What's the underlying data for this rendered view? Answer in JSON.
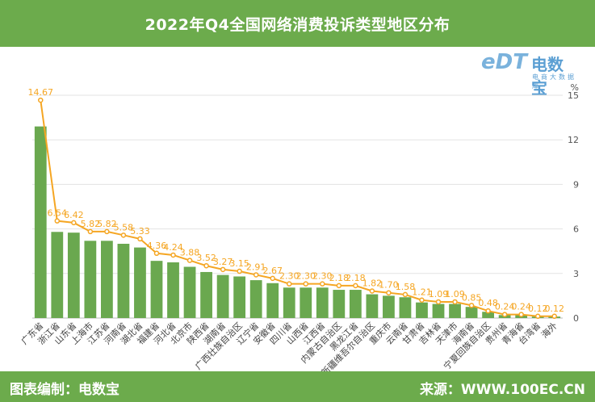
{
  "header": {
    "title": "2022年Q4全国网络消费投诉类型地区分布"
  },
  "logo": {
    "name": "电数宝",
    "sub": "电商大数据库",
    "mark": "eDT"
  },
  "footer": {
    "left": "图表编制：电数宝",
    "right": "来源：WWW.100EC.CN"
  },
  "colors": {
    "bar": "#6aa84f",
    "line": "#f5a623",
    "header": "#6cab4c",
    "label": "#f5a623"
  },
  "chart_data": {
    "type": "bar",
    "unit": "%",
    "ylim": [
      0,
      15
    ],
    "yticks": [
      0,
      3,
      6,
      9,
      12,
      15
    ],
    "categories": [
      "广东省",
      "浙江省",
      "山东省",
      "上海市",
      "江苏省",
      "河南省",
      "湖北省",
      "福建省",
      "河北省",
      "北京市",
      "陕西省",
      "湖南省",
      "广西壮族自治区",
      "辽宁省",
      "安徽省",
      "四川省",
      "山西省",
      "江西省",
      "内蒙古自治区",
      "黑龙江省",
      "新疆维吾尔自治区",
      "重庆市",
      "云南省",
      "甘肃省",
      "吉林省",
      "天津市",
      "海南省",
      "宁夏回族自治区",
      "贵州省",
      "青海省",
      "台湾省",
      "海外"
    ],
    "values": [
      14.67,
      6.54,
      6.42,
      5.82,
      5.82,
      5.58,
      5.33,
      4.36,
      4.24,
      3.88,
      3.52,
      3.27,
      3.15,
      2.91,
      2.67,
      2.3,
      2.3,
      2.3,
      2.18,
      2.18,
      1.82,
      1.7,
      1.58,
      1.21,
      1.09,
      1.09,
      0.85,
      0.48,
      0.24,
      0.24,
      0.12,
      0.12
    ],
    "bar_values": [
      12.9,
      5.8,
      5.75,
      5.2,
      5.2,
      5.0,
      4.75,
      3.85,
      3.75,
      3.45,
      3.1,
      2.9,
      2.8,
      2.55,
      2.35,
      2.05,
      2.05,
      2.05,
      1.9,
      1.9,
      1.6,
      1.5,
      1.4,
      1.05,
      0.95,
      0.95,
      0.75,
      0.42,
      0.2,
      0.2,
      0.1,
      0.1
    ],
    "labels": [
      "14.67",
      "6.54",
      "6.42",
      "5.82",
      "5.82",
      "5.58",
      "5.33",
      "4.36",
      "4.24",
      "3.88",
      "3.52",
      "3.27",
      "3.15",
      "2.91",
      "2.67",
      "2.30",
      "2.30",
      "2.30",
      "2.18",
      "2.18",
      "1.82",
      "1.70",
      "1.58",
      "1.21",
      "1.09",
      "1.09",
      "0.85",
      "0.48",
      "0.24",
      "0.24",
      "0.12",
      "0.12"
    ],
    "grid": true
  }
}
